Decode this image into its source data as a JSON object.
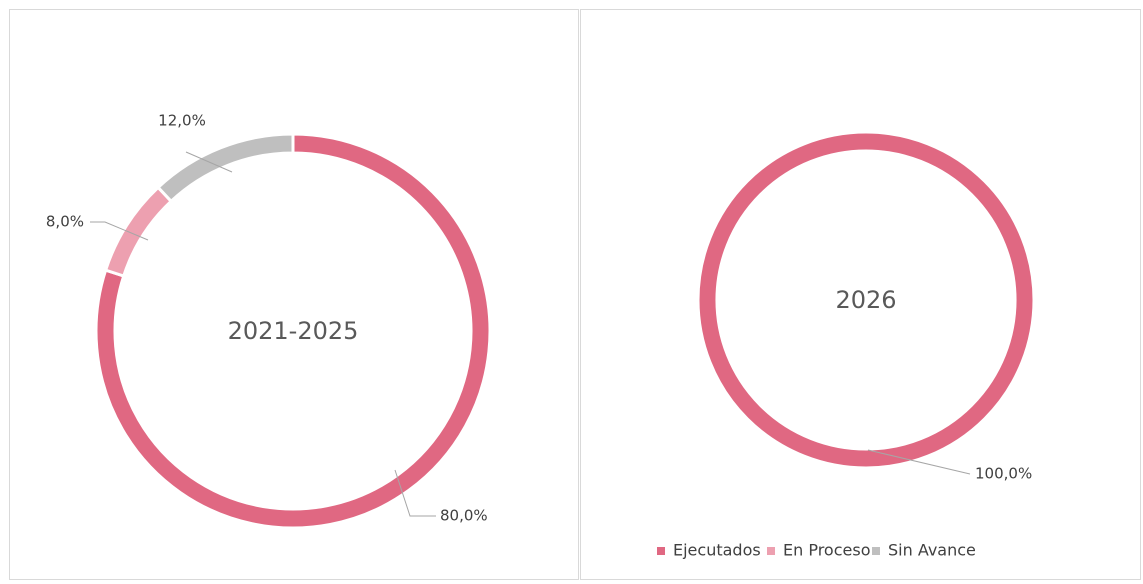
{
  "chart_data": [
    {
      "type": "doughnut",
      "title": "2021-2025",
      "categories": [
        "Ejecutados",
        "En Proceso",
        "Sin Avance"
      ],
      "values": [
        80,
        8,
        12
      ],
      "value_labels": [
        "80,0%",
        "8,0%",
        "12,0%"
      ],
      "colors": [
        "#e06882",
        "#eda0b0",
        "#bfbfbf"
      ]
    },
    {
      "type": "doughnut",
      "title": "2026",
      "categories": [
        "Ejecutados",
        "En Proceso",
        "Sin Avance"
      ],
      "values": [
        100,
        0,
        0
      ],
      "value_labels": [
        "100,0%",
        null,
        null
      ],
      "colors": [
        "#e06882",
        "#eda0b0",
        "#bfbfbf"
      ],
      "legend": "bottom"
    }
  ]
}
